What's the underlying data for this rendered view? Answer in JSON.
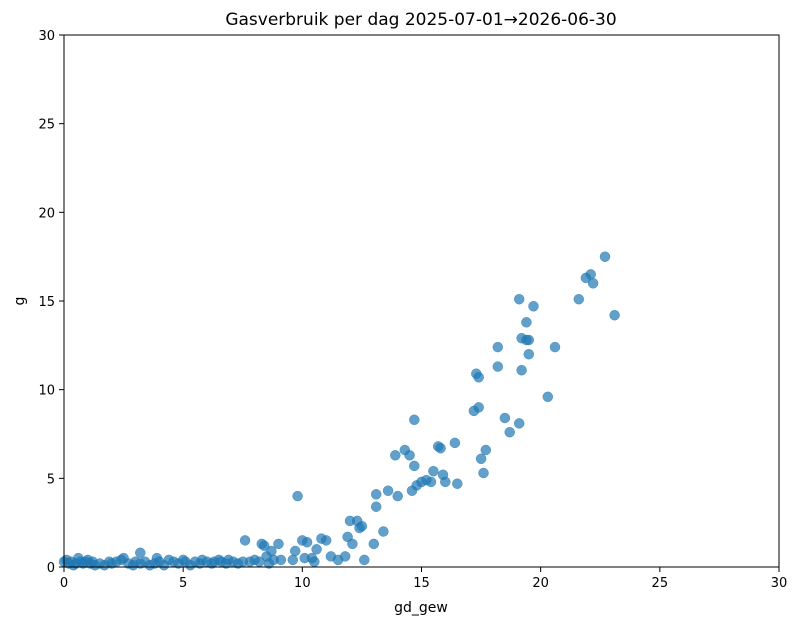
{
  "chart_data": {
    "type": "scatter",
    "title": "Gasverbruik per dag 2025-07-01→2026-06-30",
    "xlabel": "gd_gew",
    "ylabel": "g",
    "xlim": [
      0,
      30
    ],
    "ylim": [
      0,
      30
    ],
    "xticks": [
      "0",
      "5",
      "10",
      "15",
      "20",
      "25",
      "30"
    ],
    "yticks": [
      "0",
      "5",
      "10",
      "15",
      "20",
      "25",
      "30"
    ],
    "grid": false,
    "point_color": "#1f77b4",
    "points": [
      [
        0.0,
        0.3
      ],
      [
        0.1,
        0.4
      ],
      [
        0.2,
        0.2
      ],
      [
        0.3,
        0.3
      ],
      [
        0.4,
        0.1
      ],
      [
        0.5,
        0.2
      ],
      [
        0.6,
        0.5
      ],
      [
        0.7,
        0.3
      ],
      [
        0.8,
        0.2
      ],
      [
        0.9,
        0.3
      ],
      [
        1.0,
        0.4
      ],
      [
        1.1,
        0.2
      ],
      [
        1.2,
        0.3
      ],
      [
        1.3,
        0.1
      ],
      [
        1.5,
        0.2
      ],
      [
        1.7,
        0.1
      ],
      [
        1.9,
        0.3
      ],
      [
        2.0,
        0.2
      ],
      [
        2.2,
        0.3
      ],
      [
        2.4,
        0.4
      ],
      [
        2.5,
        0.5
      ],
      [
        2.7,
        0.2
      ],
      [
        2.9,
        0.1
      ],
      [
        3.0,
        0.3
      ],
      [
        3.2,
        0.2
      ],
      [
        3.2,
        0.8
      ],
      [
        3.4,
        0.3
      ],
      [
        3.6,
        0.1
      ],
      [
        3.8,
        0.2
      ],
      [
        3.9,
        0.5
      ],
      [
        4.0,
        0.3
      ],
      [
        4.2,
        0.1
      ],
      [
        4.4,
        0.4
      ],
      [
        4.6,
        0.3
      ],
      [
        4.8,
        0.2
      ],
      [
        5.0,
        0.4
      ],
      [
        5.1,
        0.3
      ],
      [
        5.3,
        0.1
      ],
      [
        5.5,
        0.3
      ],
      [
        5.7,
        0.2
      ],
      [
        5.8,
        0.4
      ],
      [
        6.0,
        0.3
      ],
      [
        6.2,
        0.2
      ],
      [
        6.3,
        0.3
      ],
      [
        6.5,
        0.4
      ],
      [
        6.6,
        0.3
      ],
      [
        6.8,
        0.2
      ],
      [
        6.9,
        0.4
      ],
      [
        7.1,
        0.3
      ],
      [
        7.3,
        0.2
      ],
      [
        7.5,
        0.3
      ],
      [
        7.6,
        1.5
      ],
      [
        7.8,
        0.3
      ],
      [
        8.0,
        0.4
      ],
      [
        8.2,
        0.3
      ],
      [
        8.3,
        1.3
      ],
      [
        8.4,
        1.2
      ],
      [
        8.5,
        0.6
      ],
      [
        8.6,
        0.2
      ],
      [
        8.7,
        0.9
      ],
      [
        8.8,
        0.4
      ],
      [
        9.0,
        1.3
      ],
      [
        9.1,
        0.4
      ],
      [
        9.6,
        0.4
      ],
      [
        9.7,
        0.9
      ],
      [
        9.8,
        4.0
      ],
      [
        10.0,
        1.5
      ],
      [
        10.1,
        0.5
      ],
      [
        10.2,
        1.4
      ],
      [
        10.4,
        0.5
      ],
      [
        10.5,
        0.3
      ],
      [
        10.6,
        1.0
      ],
      [
        10.8,
        1.6
      ],
      [
        11.0,
        1.5
      ],
      [
        11.2,
        0.6
      ],
      [
        11.5,
        0.4
      ],
      [
        11.8,
        0.6
      ],
      [
        11.9,
        1.7
      ],
      [
        12.0,
        2.6
      ],
      [
        12.1,
        1.3
      ],
      [
        12.3,
        2.6
      ],
      [
        12.4,
        2.2
      ],
      [
        12.5,
        2.3
      ],
      [
        12.6,
        0.4
      ],
      [
        13.0,
        1.3
      ],
      [
        13.1,
        3.4
      ],
      [
        13.1,
        4.1
      ],
      [
        13.4,
        2.0
      ],
      [
        13.6,
        4.3
      ],
      [
        13.9,
        6.3
      ],
      [
        14.0,
        4.0
      ],
      [
        14.3,
        6.6
      ],
      [
        14.5,
        6.3
      ],
      [
        14.6,
        4.3
      ],
      [
        14.7,
        8.3
      ],
      [
        14.7,
        5.7
      ],
      [
        14.8,
        4.6
      ],
      [
        15.0,
        4.8
      ],
      [
        15.2,
        4.9
      ],
      [
        15.4,
        4.8
      ],
      [
        15.5,
        5.4
      ],
      [
        15.7,
        6.8
      ],
      [
        15.8,
        6.7
      ],
      [
        15.9,
        5.2
      ],
      [
        16.0,
        4.8
      ],
      [
        16.4,
        7.0
      ],
      [
        16.5,
        4.7
      ],
      [
        17.2,
        8.8
      ],
      [
        17.3,
        10.9
      ],
      [
        17.4,
        9.0
      ],
      [
        17.4,
        10.7
      ],
      [
        17.5,
        6.1
      ],
      [
        17.6,
        5.3
      ],
      [
        17.7,
        6.6
      ],
      [
        18.2,
        12.4
      ],
      [
        18.2,
        11.3
      ],
      [
        18.5,
        8.4
      ],
      [
        18.7,
        7.6
      ],
      [
        19.1,
        15.1
      ],
      [
        19.1,
        8.1
      ],
      [
        19.2,
        12.9
      ],
      [
        19.2,
        11.1
      ],
      [
        19.4,
        12.8
      ],
      [
        19.4,
        13.8
      ],
      [
        19.5,
        12.8
      ],
      [
        19.5,
        12.0
      ],
      [
        19.7,
        14.7
      ],
      [
        20.3,
        9.6
      ],
      [
        20.6,
        12.4
      ],
      [
        21.6,
        15.1
      ],
      [
        21.9,
        16.3
      ],
      [
        22.1,
        16.5
      ],
      [
        22.2,
        16.0
      ],
      [
        22.7,
        17.5
      ],
      [
        23.1,
        14.2
      ]
    ]
  }
}
